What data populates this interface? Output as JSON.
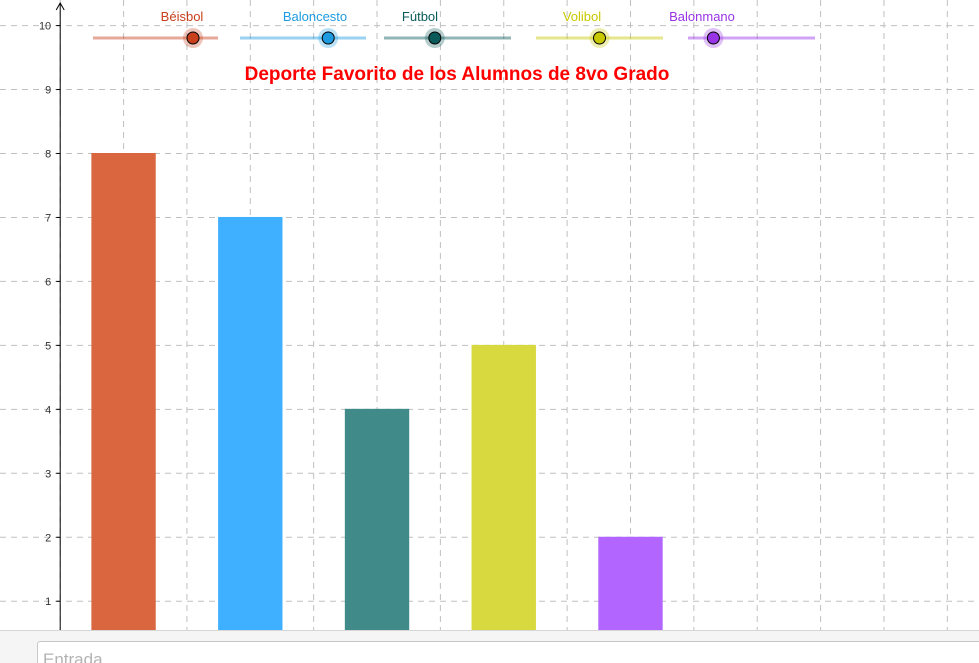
{
  "input_bar": {
    "placeholder": "Entrada"
  },
  "sliders": [
    {
      "label": "Béisbol",
      "value": 8,
      "color": "#c8401c"
    },
    {
      "label": "Baloncesto",
      "value": 7,
      "color": "#1e9be0"
    },
    {
      "label": "Fútbol",
      "value": 4,
      "color": "#0b5a5a"
    },
    {
      "label": "Volibol",
      "value": 5,
      "color": "#c8c800"
    },
    {
      "label": "Balonmano",
      "value": 2,
      "color": "#9933e6"
    }
  ],
  "chart_data": {
    "type": "bar",
    "title": "Deporte Favorito de los Alumnos de 8vo Grado",
    "title_color": "#ff0000",
    "categories": [
      "Béisbol",
      "Baloncesto",
      "Fútbol",
      "Volibol",
      "Balonmano"
    ],
    "values": [
      8,
      7,
      4,
      5,
      2
    ],
    "colors": [
      "#d9663f",
      "#3eb0ff",
      "#408a8a",
      "#d8d93e",
      "#b266ff"
    ],
    "ylim": [
      0.55,
      10.4
    ],
    "y_ticks": [
      1,
      2,
      3,
      4,
      5,
      6,
      7,
      8,
      9,
      10
    ],
    "xlim": [
      -0.95,
      14.5
    ],
    "bar_positions": [
      1,
      3,
      5,
      7,
      9
    ],
    "bar_width": 1,
    "grid": true,
    "grid_x": [
      0,
      1,
      2,
      3,
      4,
      5,
      6,
      7,
      8,
      9,
      10,
      11,
      12,
      13,
      14
    ],
    "xlabel": "",
    "ylabel": ""
  }
}
